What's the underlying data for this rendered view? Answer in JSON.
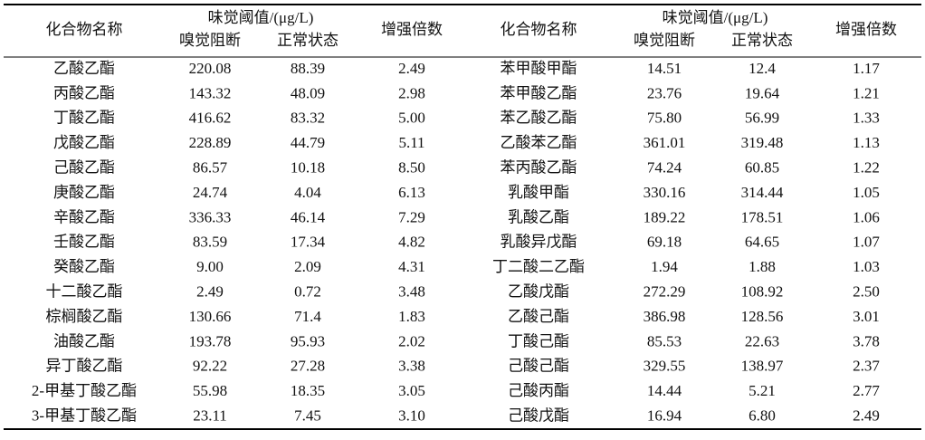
{
  "table": {
    "halves": [
      {
        "header": {
          "name": "化合物名称",
          "threshold": "味觉阈值/(μg/L)",
          "blocked": "嗅觉阻断",
          "normal": "正常状态",
          "factor": "增强倍数"
        },
        "rows": [
          [
            "乙酸乙酯",
            "220.08",
            "88.39",
            "2.49"
          ],
          [
            "丙酸乙酯",
            "143.32",
            "48.09",
            "2.98"
          ],
          [
            "丁酸乙酯",
            "416.62",
            "83.32",
            "5.00"
          ],
          [
            "戊酸乙酯",
            "228.89",
            "44.79",
            "5.11"
          ],
          [
            "己酸乙酯",
            "86.57",
            "10.18",
            "8.50"
          ],
          [
            "庚酸乙酯",
            "24.74",
            "4.04",
            "6.13"
          ],
          [
            "辛酸乙酯",
            "336.33",
            "46.14",
            "7.29"
          ],
          [
            "壬酸乙酯",
            "83.59",
            "17.34",
            "4.82"
          ],
          [
            "癸酸乙酯",
            "9.00",
            "2.09",
            "4.31"
          ],
          [
            "十二酸乙酯",
            "2.49",
            "0.72",
            "3.48"
          ],
          [
            "棕榈酸乙酯",
            "130.66",
            "71.4",
            "1.83"
          ],
          [
            "油酸乙酯",
            "193.78",
            "95.93",
            "2.02"
          ],
          [
            "异丁酸乙酯",
            "92.22",
            "27.28",
            "3.38"
          ],
          [
            "2-甲基丁酸乙酯",
            "55.98",
            "18.35",
            "3.05"
          ],
          [
            "3-甲基丁酸乙酯",
            "23.11",
            "7.45",
            "3.10"
          ]
        ]
      },
      {
        "header": {
          "name": "化合物名称",
          "threshold": "味觉阈值/(μg/L)",
          "blocked": "嗅觉阻断",
          "normal": "正常状态",
          "factor": "增强倍数"
        },
        "rows": [
          [
            "苯甲酸甲酯",
            "14.51",
            "12.4",
            "1.17"
          ],
          [
            "苯甲酸乙酯",
            "23.76",
            "19.64",
            "1.21"
          ],
          [
            "苯乙酸乙酯",
            "75.80",
            "56.99",
            "1.33"
          ],
          [
            "乙酸苯乙酯",
            "361.01",
            "319.48",
            "1.13"
          ],
          [
            "苯丙酸乙酯",
            "74.24",
            "60.85",
            "1.22"
          ],
          [
            "乳酸甲酯",
            "330.16",
            "314.44",
            "1.05"
          ],
          [
            "乳酸乙酯",
            "189.22",
            "178.51",
            "1.06"
          ],
          [
            "乳酸异戊酯",
            "69.18",
            "64.65",
            "1.07"
          ],
          [
            "丁二酸二乙酯",
            "1.94",
            "1.88",
            "1.03"
          ],
          [
            "乙酸戊酯",
            "272.29",
            "108.92",
            "2.50"
          ],
          [
            "乙酸己酯",
            "386.98",
            "128.56",
            "3.01"
          ],
          [
            "丁酸己酯",
            "85.53",
            "22.63",
            "3.78"
          ],
          [
            "己酸己酯",
            "329.55",
            "138.97",
            "2.37"
          ],
          [
            "己酸丙酯",
            "14.44",
            "5.21",
            "2.77"
          ],
          [
            "己酸戊酯",
            "16.94",
            "6.80",
            "2.49"
          ]
        ]
      }
    ]
  }
}
